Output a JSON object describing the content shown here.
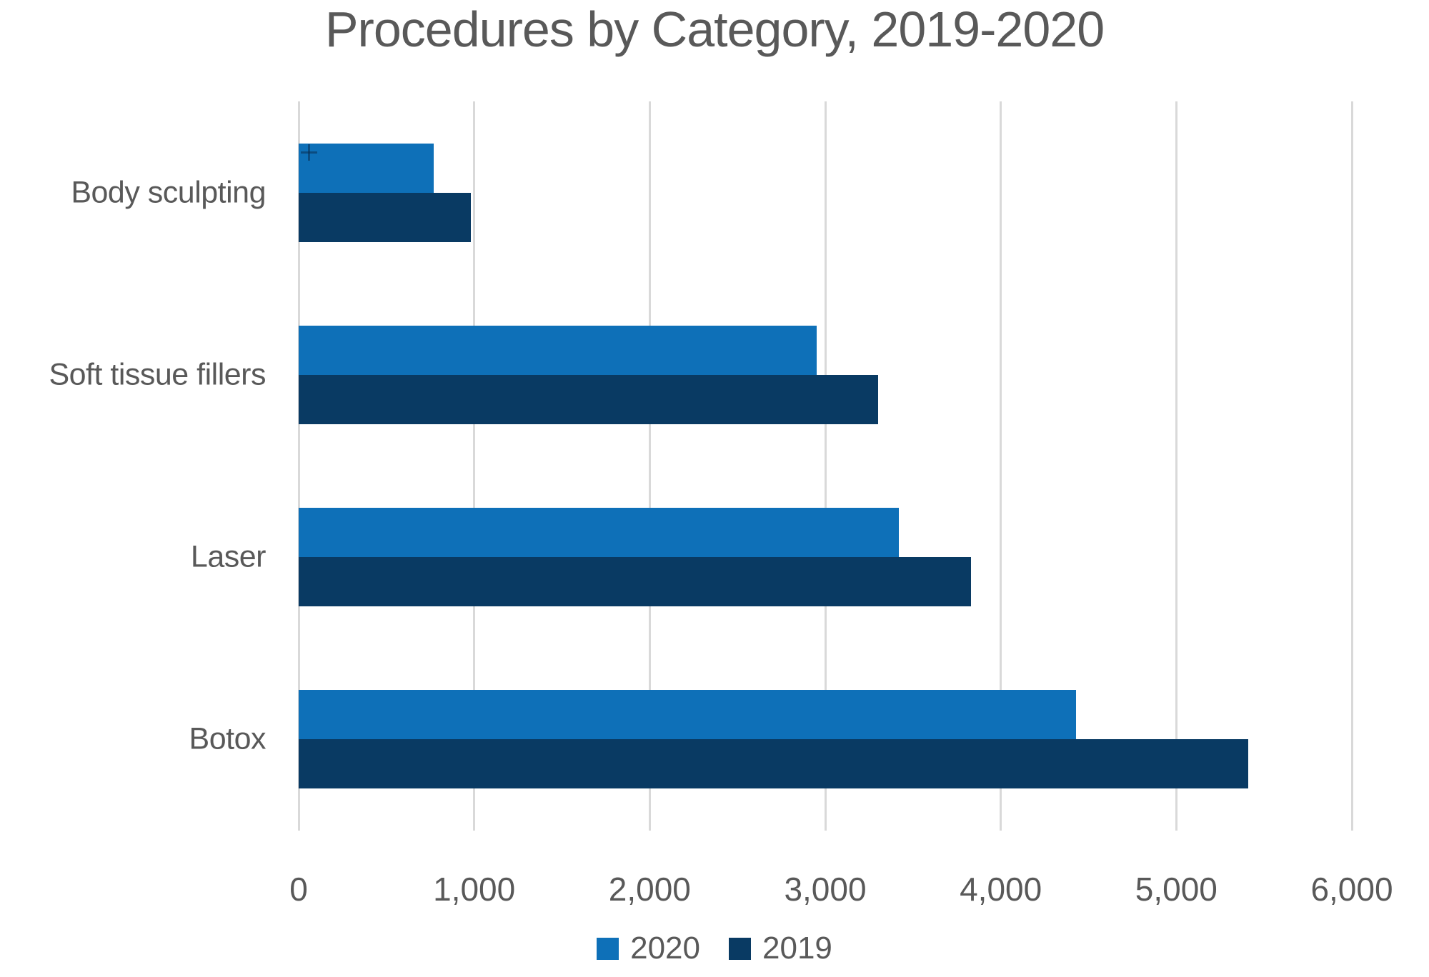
{
  "title": "Procedures by Category, 2019-2020",
  "colors": {
    "series_2020": "#0e70b8",
    "series_2019": "#093a63",
    "gridline": "#d9d9d9",
    "text": "#595959"
  },
  "chart_data": {
    "type": "bar",
    "orientation": "horizontal",
    "title": "Procedures by Category, 2019-2020",
    "categories": [
      "Body sculpting",
      "Soft tissue fillers",
      "Laser",
      "Botox"
    ],
    "series": [
      {
        "name": "2020",
        "color": "#0e70b8",
        "values": [
          770,
          2950,
          3420,
          4430
        ]
      },
      {
        "name": "2019",
        "color": "#093a63",
        "values": [
          980,
          3300,
          3830,
          5410
        ]
      }
    ],
    "xlim": [
      0,
      6000
    ],
    "xticks": [
      0,
      1000,
      2000,
      3000,
      4000,
      5000,
      6000
    ],
    "xtick_labels": [
      "0",
      "1,000",
      "2,000",
      "3,000",
      "4,000",
      "5,000",
      "6,000"
    ],
    "grid": "vertical",
    "legend_position": "bottom",
    "legend": [
      "2020",
      "2019"
    ]
  }
}
